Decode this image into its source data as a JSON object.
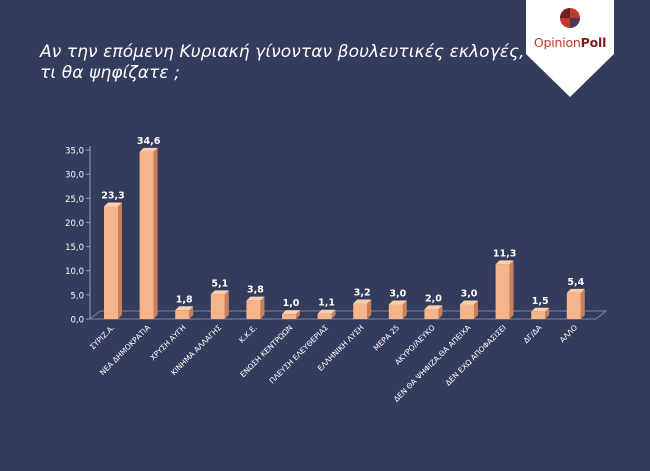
{
  "title": {
    "line1": "Αν την επόμενη Κυριακή γίνονταν βουλευτικές εκλογές,",
    "line2": "τι θα ψηφίζατε ;"
  },
  "logo": {
    "part1": "Opinion",
    "part2": "Poll"
  },
  "colors": {
    "background": "#343c5d",
    "bar_front": "#f5b489",
    "bar_side": "#c9805a",
    "bar_top": "#f9cfae",
    "text": "#ffffff",
    "logo_red": "#c0392b",
    "logo_dark": "#7a1d1d"
  },
  "chart_data": {
    "type": "bar",
    "categories": [
      "ΣΥΡΙΖ.Α.",
      "ΝΕΑ ΔΗΜΟΚΡΑΤΙΑ",
      "ΧΡΥΣΗ ΑΥΓΗ",
      "ΚΙΝΗΜΑ ΑΛΛΑΓΗΣ",
      "Κ.Κ.Ε.",
      "ΕΝΩΣΗ ΚΕΝΤΡΩΩΝ",
      "ΠΛΕΥΣΗ ΕΛΕΥΘΕΡΙΑΣ",
      "ΕΛΛΗΝΙΚΗ ΛΥΣΗ",
      "ΜΕΡΑ 25",
      "ΑΚΥΡΟ/ΛΕΥΚΟ",
      "ΔΕΝ ΘΑ ΨΗΦΙΖΑ,ΘΑ ΑΠΕΙΧΑ",
      "ΔΕΝ ΕΧΩ ΑΠΟΦΑΣΙΣΕΙ",
      "ΔΓ/ΔΑ",
      "ΑΛΛΟ"
    ],
    "values": [
      23.3,
      34.6,
      1.8,
      5.1,
      3.8,
      1.0,
      1.1,
      3.2,
      3.0,
      2.0,
      3.0,
      11.3,
      1.5,
      5.4
    ],
    "value_labels": [
      "23,3",
      "34,6",
      "1,8",
      "5,1",
      "3,8",
      "1,0",
      "1,1",
      "3,2",
      "3,0",
      "2,0",
      "3,0",
      "11,3",
      "1,5",
      "5,4"
    ],
    "yticks": [
      "0,0",
      "5,0",
      "10,0",
      "15,0",
      "20,0",
      "25,0",
      "30,0",
      "35,0"
    ],
    "ytick_values": [
      0,
      5,
      10,
      15,
      20,
      25,
      30,
      35
    ],
    "ylim": [
      0,
      35
    ],
    "grid": false,
    "legend": "none"
  }
}
